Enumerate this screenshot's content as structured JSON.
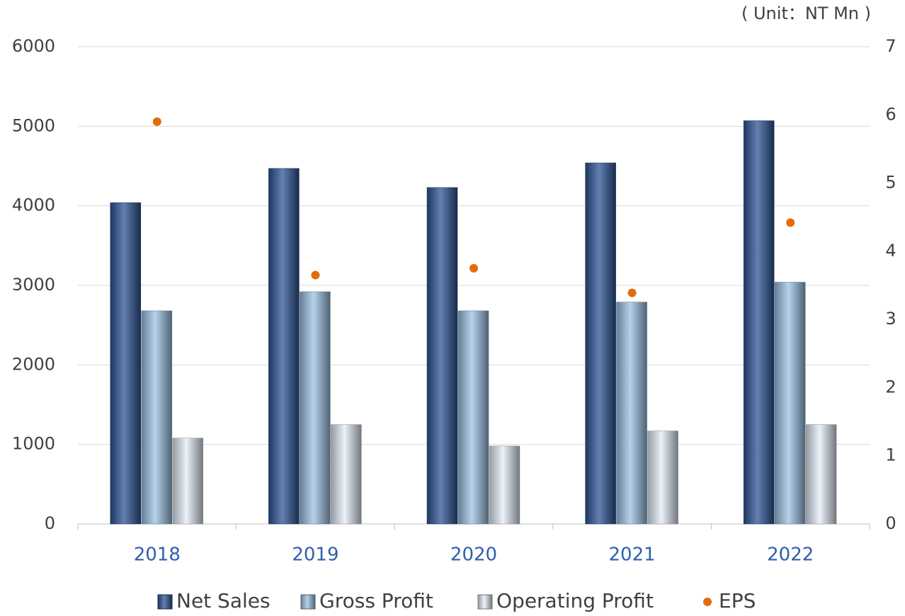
{
  "chart_data": {
    "type": "bar",
    "unit_note": "( Unit：NT Mn )",
    "categories": [
      "2018",
      "2019",
      "2020",
      "2021",
      "2022"
    ],
    "series": [
      {
        "name": "Net Sales",
        "color": "#2e5597",
        "values": [
          4040,
          4470,
          4230,
          4540,
          5070
        ]
      },
      {
        "name": "Gross Profit",
        "color": "#9dc3e6",
        "values": [
          2680,
          2920,
          2680,
          2790,
          3040
        ]
      },
      {
        "name": "Operating Profit",
        "color": "#e4eef8",
        "values": [
          1080,
          1250,
          980,
          1170,
          1250
        ]
      },
      {
        "name": "EPS",
        "color": "#e36c0a",
        "type": "scatter",
        "axis": "y2",
        "values": [
          5.9,
          3.65,
          3.75,
          3.39,
          4.42
        ]
      }
    ],
    "ylim": [
      0,
      6000
    ],
    "yticks": [
      0,
      1000,
      2000,
      3000,
      4000,
      5000,
      6000
    ],
    "y2lim": [
      0,
      7
    ],
    "y2ticks": [
      0,
      1,
      2,
      3,
      4,
      5,
      6,
      7
    ],
    "grid": true
  }
}
